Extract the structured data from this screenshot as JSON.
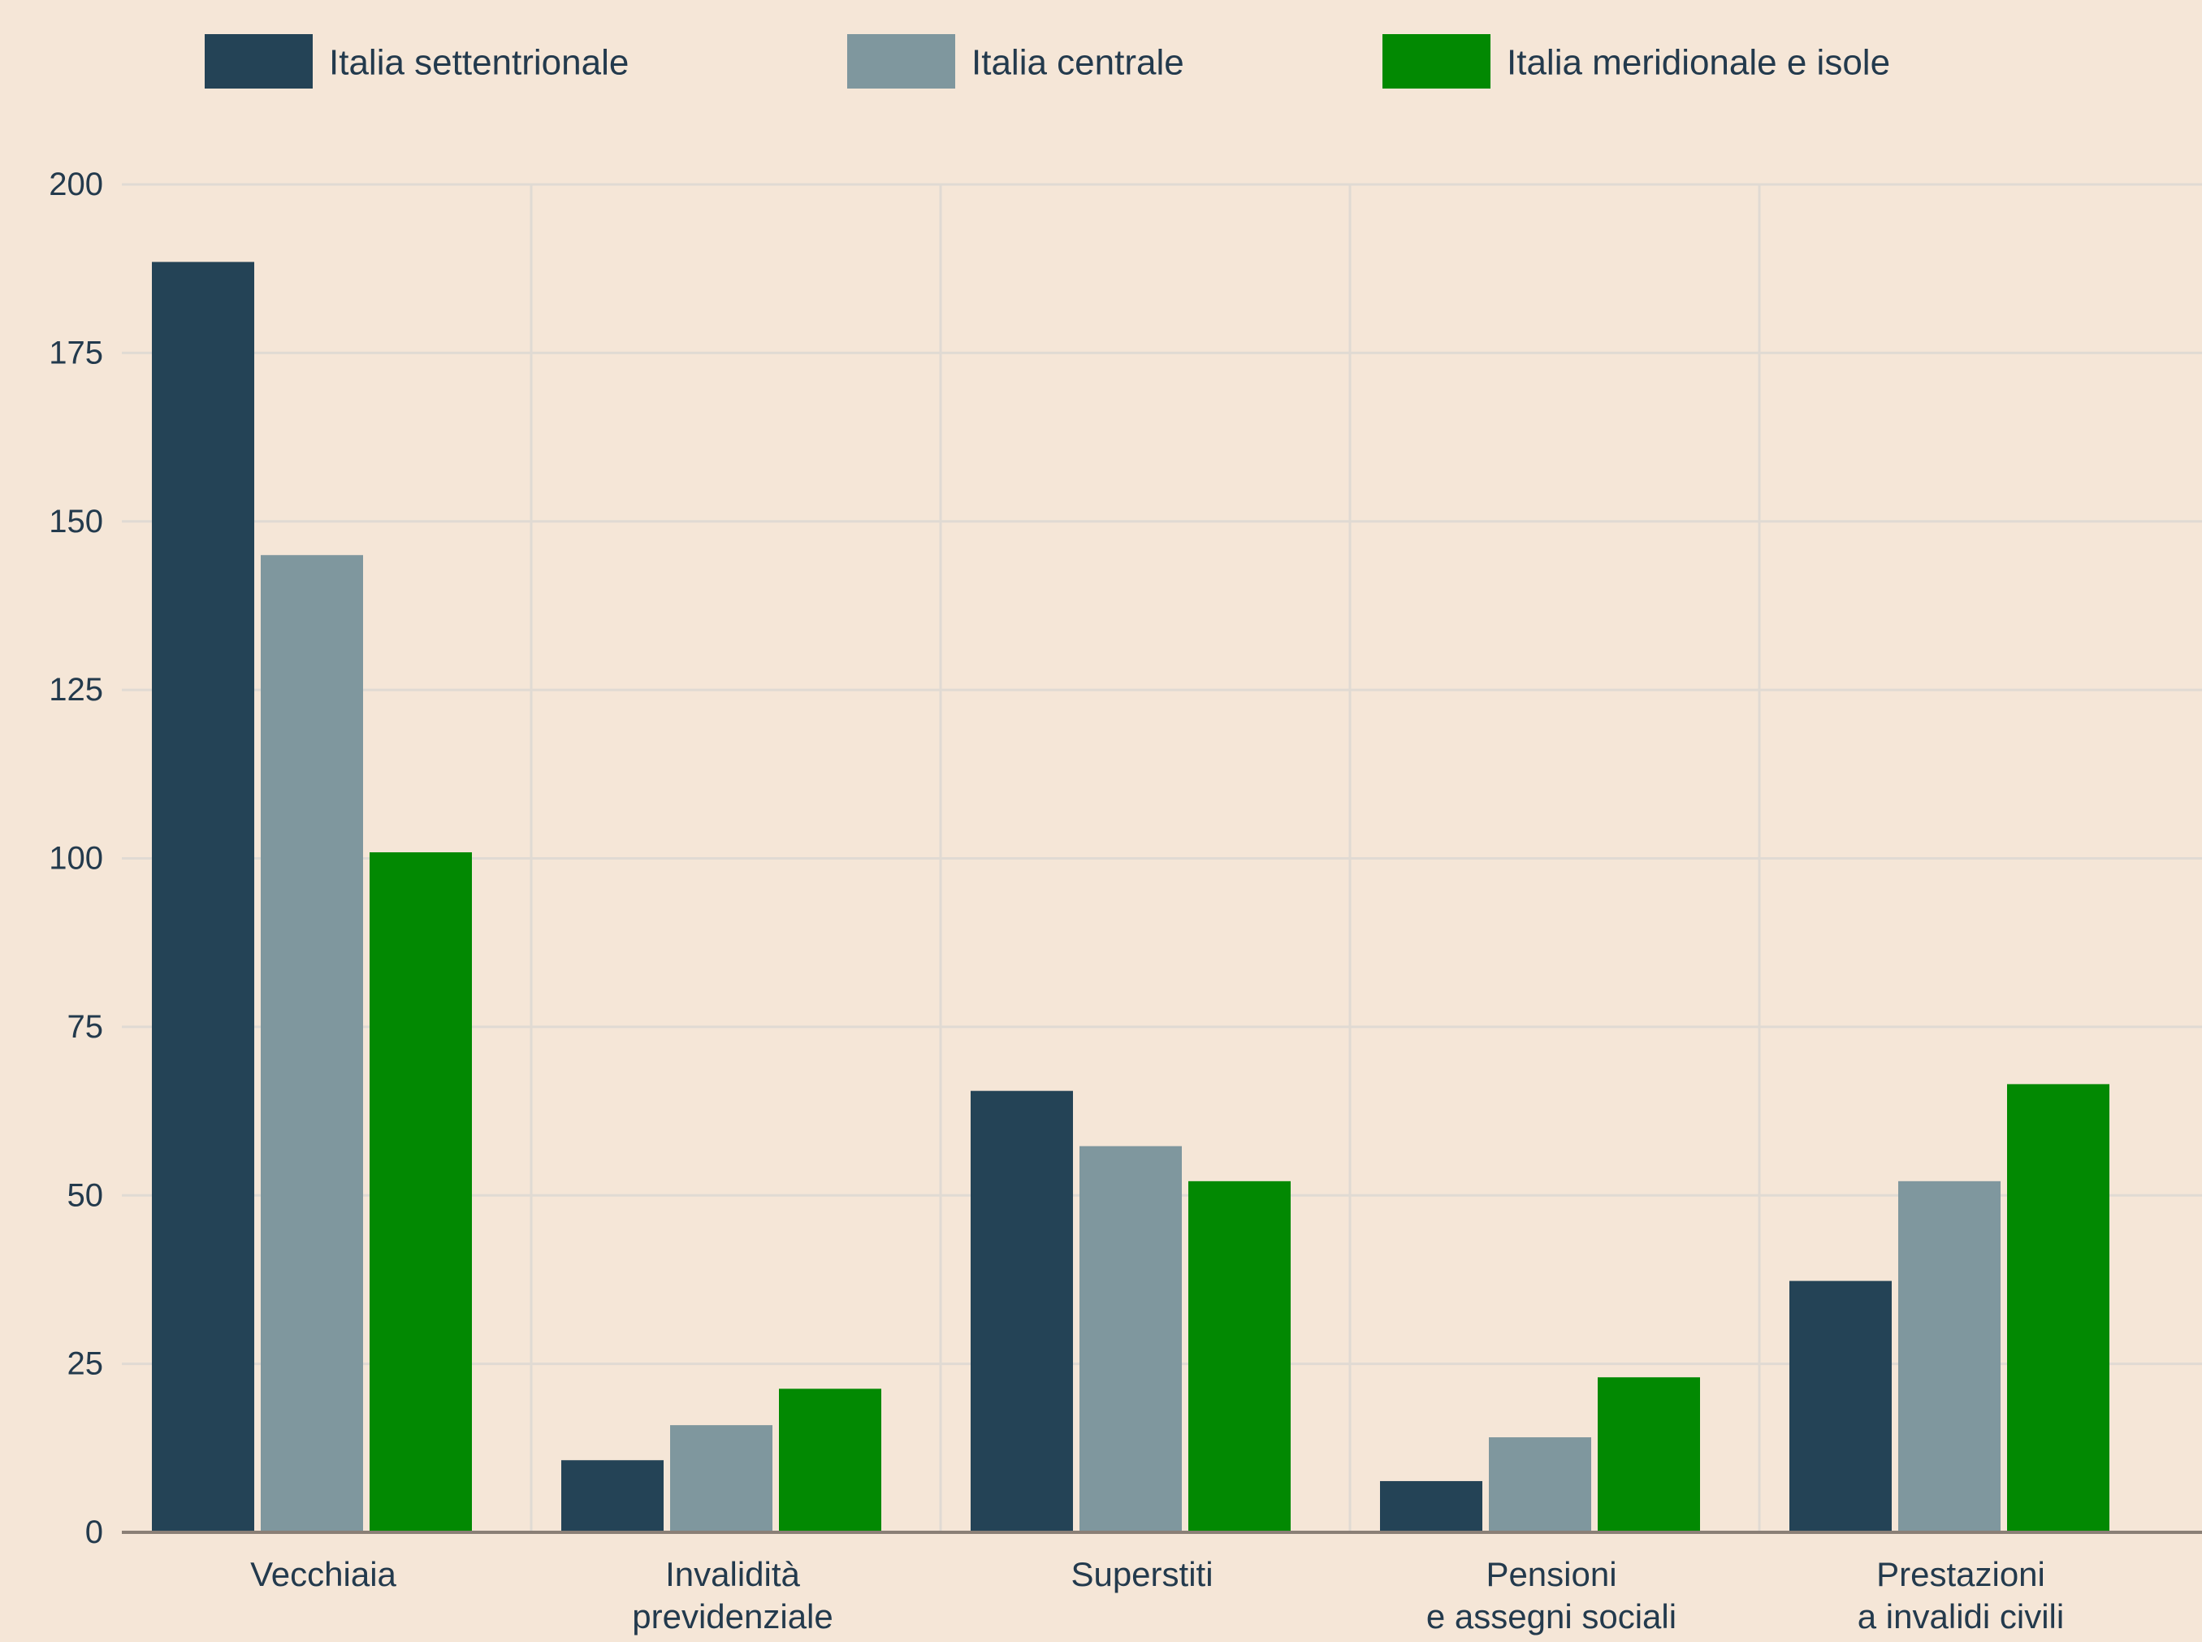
{
  "chart_data": {
    "type": "bar",
    "categories": [
      [
        "Vecchiaia"
      ],
      [
        "Invalidità",
        "previdenziale"
      ],
      [
        "Superstiti"
      ],
      [
        "Pensioni",
        "e assegni sociali"
      ],
      [
        "Prestazioni",
        "a invalidi civili"
      ]
    ],
    "series": [
      {
        "name": "Italia settentrionale",
        "color": "#244356",
        "values": [
          188.5,
          10.7,
          65.5,
          7.6,
          37.3
        ]
      },
      {
        "name": "Italia centrale",
        "color": "#7f979e",
        "values": [
          145.0,
          15.9,
          57.3,
          14.1,
          52.1
        ]
      },
      {
        "name": "Italia meridionale e isole",
        "color": "#028902",
        "values": [
          100.9,
          21.3,
          52.1,
          23.0,
          66.5
        ]
      }
    ],
    "ylim": [
      0,
      200
    ],
    "yticks": [
      0,
      25,
      50,
      75,
      100,
      125,
      150,
      175,
      200
    ],
    "grid": true,
    "legend_position": "top"
  },
  "colors": {
    "background": "#f5e6d7",
    "grid": "#e0dad3",
    "axis": "#8a7f76",
    "text": "#233a4d"
  }
}
